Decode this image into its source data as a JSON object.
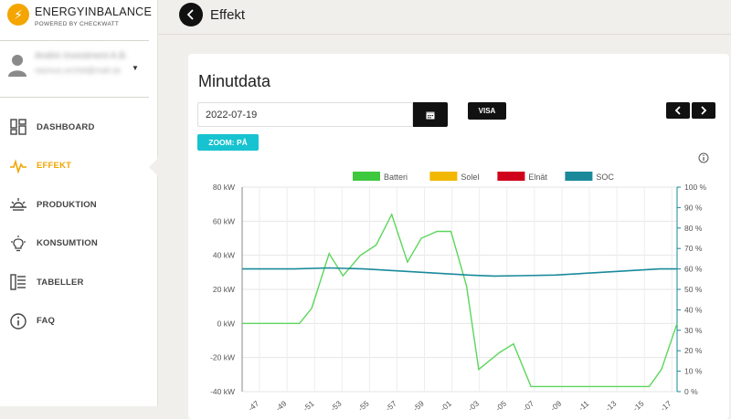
{
  "brand": {
    "name": "ENERGYINBALANCE",
    "sub": "POWERED BY CHECKWATT",
    "accent": "#f5a500"
  },
  "user": {
    "name": "Andrin Investment A.B.",
    "email": "rasmus.orchid@mail.se"
  },
  "nav": {
    "items": [
      {
        "label": "DASHBOARD",
        "icon": "dashboard-icon"
      },
      {
        "label": "EFFEKT",
        "icon": "power-wave-icon",
        "active": true
      },
      {
        "label": "PRODUKTION",
        "icon": "sunrise-icon"
      },
      {
        "label": "KONSUMTION",
        "icon": "lightbulb-icon"
      },
      {
        "label": "TABELLER",
        "icon": "table-icon"
      },
      {
        "label": "FAQ",
        "icon": "info-icon"
      }
    ]
  },
  "header": {
    "title": "Effekt"
  },
  "card": {
    "title": "Minutdata",
    "date_value": "2022-07-19",
    "visa_label": "VISA",
    "zoom_label": "ZOOM: PÅ"
  },
  "chart_data": {
    "type": "line",
    "legend": [
      {
        "name": "Batteri",
        "color": "#3ec83e"
      },
      {
        "name": "Solel",
        "color": "#f2b700"
      },
      {
        "name": "Elnät",
        "color": "#d0021b"
      },
      {
        "name": "SOC",
        "color": "#1a8a9a"
      }
    ],
    "legend_position": "top",
    "grid": true,
    "x_ticks": [
      "47",
      "49",
      "51",
      "53",
      "55",
      "57",
      "59",
      "01",
      "03",
      "05",
      "07",
      "09",
      "11",
      "13",
      "15",
      "17"
    ],
    "x_range": [
      46,
      71
    ],
    "y_left": {
      "ticks": [
        "80 kW",
        "60 kW",
        "40 kW",
        "20 kW",
        "0 kW",
        "-20 kW",
        "-40 kW"
      ],
      "range": [
        -40,
        80
      ],
      "unit": "kW"
    },
    "y_right": {
      "ticks": [
        "100 %",
        "90 %",
        "80 %",
        "70 %",
        "60 %",
        "50 %",
        "40 %",
        "30 %",
        "20 %",
        "10 %",
        "0 %"
      ],
      "range": [
        0,
        100
      ],
      "unit": "%"
    },
    "series": [
      {
        "name": "Batteri",
        "color": "#5cd65c",
        "axis": "left",
        "x": [
          46,
          49.3,
          50,
          51,
          51.8,
          52.8,
          53.7,
          54.6,
          55.5,
          56.3,
          57.2,
          58,
          58.9,
          59.6,
          60.8,
          61.6,
          62.6,
          63.5,
          64.2,
          69.4,
          70.1,
          71
        ],
        "y": [
          0,
          0,
          9,
          41,
          28,
          40,
          46,
          64,
          36,
          50,
          54,
          54,
          22,
          -27,
          -17,
          -12,
          -37,
          -37,
          -37,
          -37,
          -27,
          0
        ]
      },
      {
        "name": "SOC",
        "color": "#1a8a9a",
        "axis": "right",
        "x": [
          46,
          49,
          51,
          53,
          55,
          57,
          59,
          60.5,
          62,
          64,
          66,
          68,
          70,
          71
        ],
        "y": [
          60,
          60,
          60.5,
          60,
          59,
          58,
          57,
          56.5,
          56.7,
          57,
          58,
          59,
          60,
          60
        ]
      },
      {
        "name": "Solel",
        "color": "#f2b700",
        "axis": "left",
        "x": [],
        "y": []
      },
      {
        "name": "Elnät",
        "color": "#d0021b",
        "axis": "left",
        "x": [],
        "y": []
      }
    ]
  }
}
